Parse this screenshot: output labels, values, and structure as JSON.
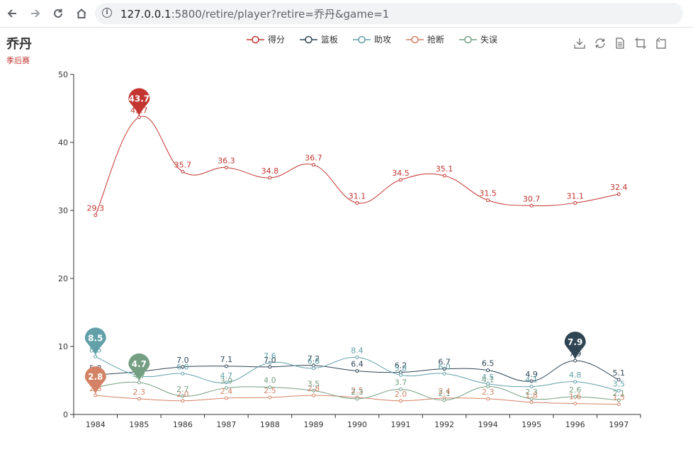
{
  "browser": {
    "url_host": "127.0.0.1",
    "url_rest": ":5800/retire/player?retire=乔丹&game=1"
  },
  "icons": {
    "back": "arrow-left-icon",
    "forward": "arrow-right-icon",
    "reload": "reload-icon",
    "home": "home-icon",
    "info": "info-icon",
    "toolbox": [
      "download-icon",
      "restore-icon",
      "data-view-icon",
      "zoom-icon",
      "zoom-reset-icon"
    ]
  },
  "chart_data": {
    "type": "line",
    "title": "乔丹",
    "subtitle": "季后赛",
    "categories": [
      "1984",
      "1985",
      "1986",
      "1987",
      "1988",
      "1989",
      "1990",
      "1991",
      "1992",
      "1994",
      "1995",
      "1996",
      "1997"
    ],
    "ylim": [
      0,
      50
    ],
    "yticks": [
      0,
      10,
      20,
      30,
      40,
      50
    ],
    "legend_position": "top-center",
    "grid": false,
    "series": [
      {
        "name": "得分",
        "color": "#c23531",
        "values": [
          29.3,
          43.7,
          35.7,
          36.3,
          34.8,
          36.7,
          31.1,
          34.5,
          35.1,
          31.5,
          30.7,
          31.1,
          32.4
        ],
        "markpoint": {
          "index": 1,
          "label": "43.7",
          "color": "#c23531"
        }
      },
      {
        "name": "篮板",
        "color": "#2f4554",
        "values": [
          5.8,
          6.3,
          7.0,
          7.1,
          7.0,
          7.2,
          6.4,
          6.2,
          6.7,
          6.5,
          4.9,
          7.9,
          5.1
        ],
        "markpoint": {
          "index": 11,
          "label": "7.9",
          "color": "#2f4554"
        }
      },
      {
        "name": "助攻",
        "color": "#61a0a8",
        "values": [
          8.5,
          5.7,
          6.0,
          4.7,
          7.6,
          6.8,
          8.4,
          5.8,
          6.0,
          4.5,
          4.1,
          4.8,
          3.5
        ],
        "markpoint": {
          "index": 0,
          "label": "8.5",
          "color": "#61a0a8"
        }
      },
      {
        "name": "抢断",
        "color": "#d48265",
        "values": [
          2.8,
          2.3,
          2.0,
          2.4,
          2.5,
          2.8,
          2.5,
          2.0,
          2.4,
          2.3,
          1.8,
          1.6,
          1.5
        ],
        "markpoint": {
          "index": 0,
          "label": "2.8",
          "color": "#d48265"
        }
      },
      {
        "name": "失误",
        "color": "#749f83",
        "values": [
          4.0,
          4.7,
          2.7,
          3.9,
          4.0,
          3.5,
          2.3,
          3.7,
          2.1,
          4.1,
          2.3,
          2.6,
          2.1
        ],
        "markpoint": {
          "index": 1,
          "label": "4.7",
          "color": "#749f83"
        }
      }
    ]
  }
}
